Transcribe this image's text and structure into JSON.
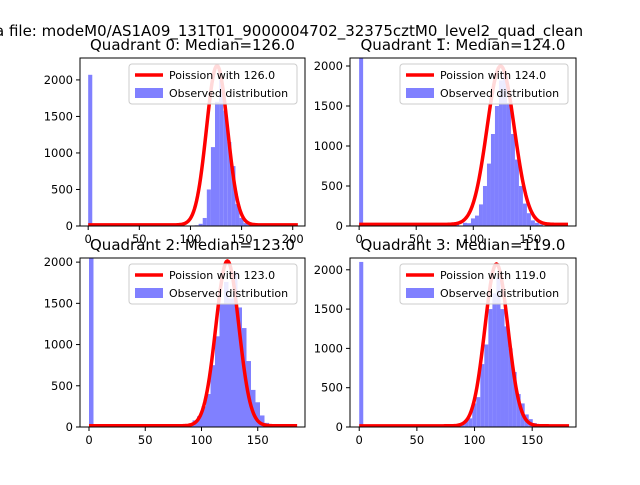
{
  "figure": {
    "suptitle": "a file: modeM0/AS1A09_131T01_9000004702_32375cztM0_level2_quad_clean",
    "colors": {
      "bar": "#8080ff",
      "bar_edge": "#7070ee",
      "curve": "#ff0000",
      "axis": "#000000",
      "background": "#ffffff"
    }
  },
  "chart_data": [
    {
      "type": "bar",
      "title": "Quadrant 0: Median=126.0",
      "xlim": [
        -8,
        212
      ],
      "ylim": [
        0,
        2300
      ],
      "xticks": [
        0,
        50,
        100,
        150,
        200
      ],
      "yticks": [
        0,
        500,
        1000,
        1500,
        2000
      ],
      "bin_width": 4,
      "bins": [
        [
          0,
          2070
        ],
        [
          104,
          10
        ],
        [
          108,
          30
        ],
        [
          112,
          110
        ],
        [
          116,
          500
        ],
        [
          120,
          1080
        ],
        [
          124,
          1700
        ],
        [
          128,
          2000
        ],
        [
          132,
          1580
        ],
        [
          136,
          1150
        ],
        [
          140,
          820
        ],
        [
          144,
          300
        ],
        [
          148,
          110
        ],
        [
          152,
          40
        ],
        [
          156,
          15
        ]
      ],
      "fit": {
        "mu": 126,
        "sigma": 10.3,
        "amplitude": 2180,
        "baseline": 15,
        "x_range": [
          0,
          205
        ]
      },
      "legend": {
        "curve_label": "Poission with 126.0",
        "hist_label": "Observed distribution",
        "loc": "upper right"
      }
    },
    {
      "type": "bar",
      "title": "Quadrant 1: Median=124.0",
      "xlim": [
        -8,
        190
      ],
      "ylim": [
        0,
        2100
      ],
      "xticks": [
        0,
        50,
        100,
        150
      ],
      "yticks": [
        0,
        500,
        1000,
        1500,
        2000
      ],
      "bin_width": 3.5,
      "bins": [
        [
          0,
          2100
        ],
        [
          59.5,
          15
        ],
        [
          70,
          15
        ],
        [
          80.5,
          15
        ],
        [
          84,
          35
        ],
        [
          91,
          40
        ],
        [
          94.5,
          35
        ],
        [
          98,
          95
        ],
        [
          101.5,
          130
        ],
        [
          105,
          270
        ],
        [
          108.5,
          500
        ],
        [
          112,
          780
        ],
        [
          115.5,
          1150
        ],
        [
          119,
          1500
        ],
        [
          122.5,
          1820
        ],
        [
          126,
          1880
        ],
        [
          129.5,
          1540
        ],
        [
          133,
          1150
        ],
        [
          136.5,
          830
        ],
        [
          140,
          500
        ],
        [
          143.5,
          280
        ],
        [
          147,
          160
        ],
        [
          150.5,
          70
        ],
        [
          154,
          40
        ],
        [
          157.5,
          20
        ]
      ],
      "fit": {
        "mu": 124,
        "sigma": 12.0,
        "amplitude": 1980,
        "baseline": 20,
        "x_range": [
          0,
          183
        ]
      },
      "legend": {
        "curve_label": "Poission with 124.0",
        "hist_label": "Observed distribution",
        "loc": "upper right"
      }
    },
    {
      "type": "bar",
      "title": "Quadrant 2: Median=123.0",
      "xlim": [
        -8,
        192
      ],
      "ylim": [
        0,
        2050
      ],
      "xticks": [
        0,
        50,
        100,
        150
      ],
      "yticks": [
        0,
        500,
        1000,
        1500,
        2000
      ],
      "bin_width": 4,
      "bins": [
        [
          0,
          2100
        ],
        [
          76,
          10
        ],
        [
          84,
          20
        ],
        [
          88,
          40
        ],
        [
          92,
          80
        ],
        [
          96,
          130
        ],
        [
          100,
          250
        ],
        [
          104,
          400
        ],
        [
          108,
          750
        ],
        [
          112,
          1100
        ],
        [
          116,
          1500
        ],
        [
          120,
          1760
        ],
        [
          124,
          1560
        ],
        [
          128,
          1880
        ],
        [
          132,
          1450
        ],
        [
          136,
          1200
        ],
        [
          140,
          800
        ],
        [
          144,
          450
        ],
        [
          148,
          300
        ],
        [
          152,
          140
        ],
        [
          156,
          50
        ],
        [
          160,
          20
        ]
      ],
      "fit": {
        "mu": 123,
        "sigma": 10.2,
        "amplitude": 2000,
        "baseline": 15,
        "x_range": [
          0,
          185
        ]
      },
      "legend": {
        "curve_label": "Poission with 123.0",
        "hist_label": "Observed distribution",
        "loc": "upper right"
      }
    },
    {
      "type": "bar",
      "title": "Quadrant 3: Median=119.0",
      "xlim": [
        -8,
        188
      ],
      "ylim": [
        0,
        2150
      ],
      "xticks": [
        0,
        50,
        100,
        150
      ],
      "yticks": [
        0,
        500,
        1000,
        1500,
        2000
      ],
      "bin_width": 3.5,
      "bins": [
        [
          0,
          2100
        ],
        [
          84,
          30
        ],
        [
          87.5,
          40
        ],
        [
          91,
          90
        ],
        [
          94.5,
          110
        ],
        [
          98,
          300
        ],
        [
          101.5,
          380
        ],
        [
          105,
          800
        ],
        [
          108.5,
          1050
        ],
        [
          112,
          1500
        ],
        [
          115.5,
          1700
        ],
        [
          119,
          1900
        ],
        [
          122.5,
          1500
        ],
        [
          126,
          1280
        ],
        [
          129.5,
          1000
        ],
        [
          133,
          700
        ],
        [
          136.5,
          420
        ],
        [
          140,
          300
        ],
        [
          143.5,
          160
        ],
        [
          147,
          100
        ],
        [
          150.5,
          50
        ],
        [
          154,
          20
        ]
      ],
      "fit": {
        "mu": 119,
        "sigma": 10.0,
        "amplitude": 2060,
        "baseline": 15,
        "x_range": [
          0,
          182
        ]
      },
      "legend": {
        "curve_label": "Poission with 119.0",
        "hist_label": "Observed distribution",
        "loc": "upper right"
      }
    }
  ]
}
